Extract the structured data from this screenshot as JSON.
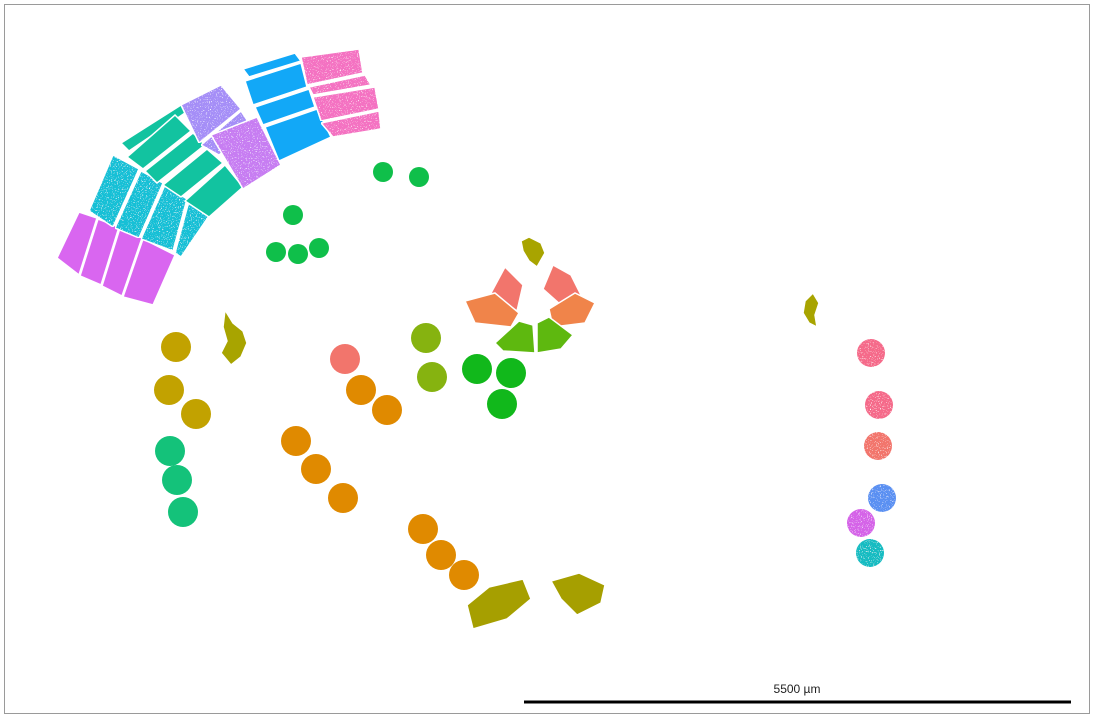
{
  "scale_bar": {
    "label": "5500 µm",
    "color": "#000000"
  },
  "palette": {
    "magenta": "#d966f0",
    "cyan": "#17c0d6",
    "teal": "#12c3a0",
    "lavender": "#a58ef7",
    "violet": "#c77df2",
    "blue": "#12a8f7",
    "pink": "#f472c2",
    "green": "#0fbf4a",
    "green_bright": "#11b81b",
    "olive_green": "#86b310",
    "olive": "#a8a400",
    "olive_dark": "#a69f00",
    "gold": "#c2a200",
    "salmon": "#f2756c",
    "orange": "#f0844a",
    "orange_dark": "#e08a00",
    "light_green": "#5eb80f",
    "emerald": "#14c27a",
    "rose": "#f56a8a",
    "sky": "#5a90f2",
    "orchid": "#d563e8",
    "turquoise": "#14bcc2"
  }
}
